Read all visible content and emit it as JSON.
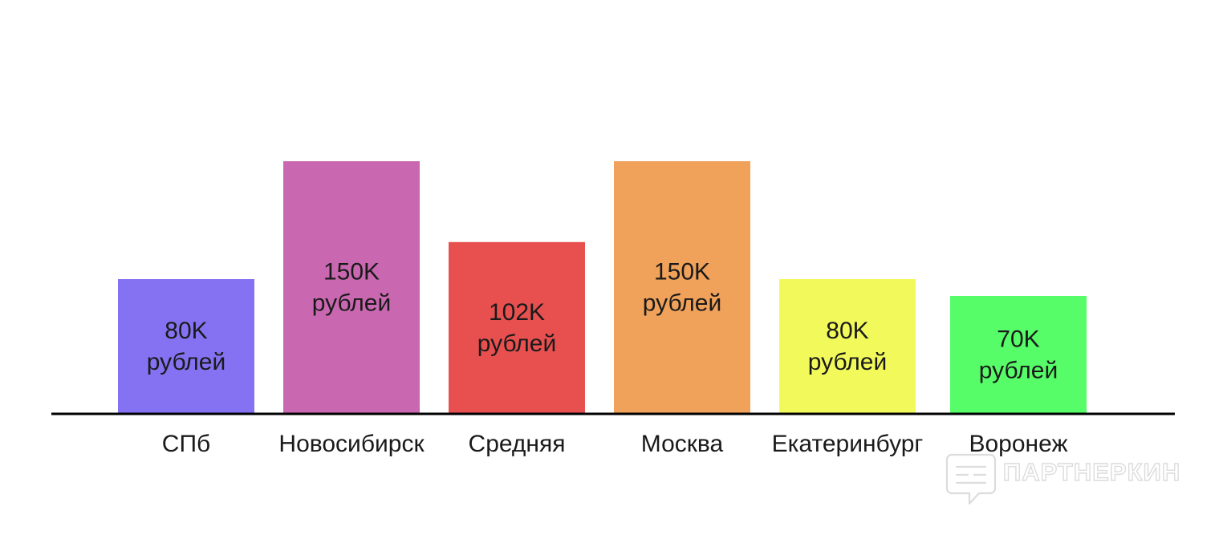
{
  "chart_data": {
    "type": "bar",
    "categories": [
      "СПб",
      "Новосибирск",
      "Средняя",
      "Москва",
      "Екатеринбург",
      "Воронеж"
    ],
    "values": [
      80,
      150,
      102,
      150,
      80,
      70
    ],
    "value_labels": [
      "80K",
      "150K",
      "102K",
      "150K",
      "80K",
      "70K"
    ],
    "unit_label": "рублей",
    "colors": [
      "#8572f2",
      "#c968b1",
      "#e85050",
      "#f0a15a",
      "#f2f95a",
      "#56fd68"
    ],
    "axis_color": "#000000",
    "ylim": [
      0,
      150
    ],
    "grid": false,
    "legend": "none"
  },
  "watermark": {
    "text": "ПАРТНЕРКИН",
    "icon": "speech-bubble-logo-icon"
  }
}
